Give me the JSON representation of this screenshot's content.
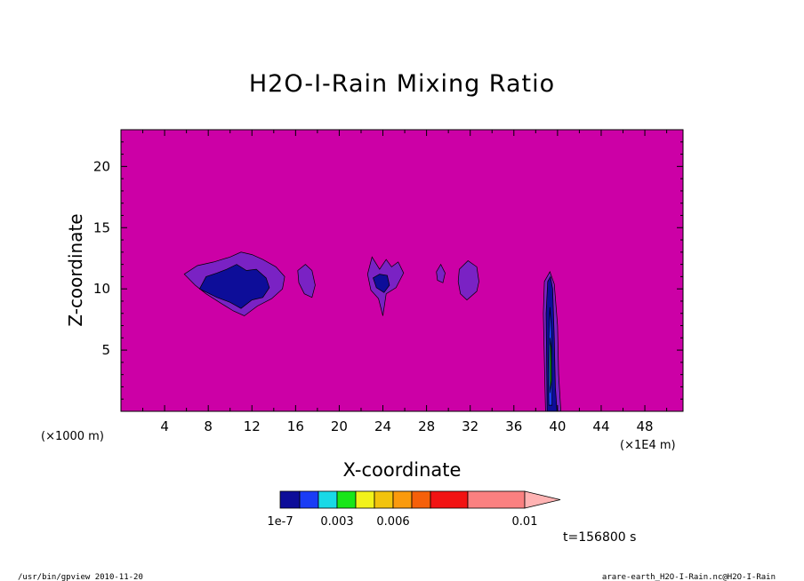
{
  "chart_data": {
    "type": "heatmap",
    "title": "H2O-I-Rain Mixing Ratio",
    "xlabel": "X-coordinate",
    "ylabel": "Z-coordinate",
    "x_unit_left": "(×1000 m)",
    "x_unit_right": "(×1E4 m)",
    "xlim": [
      0,
      51.5
    ],
    "ylim": [
      0,
      23
    ],
    "x_ticks": [
      4,
      8,
      12,
      16,
      20,
      24,
      28,
      32,
      36,
      40,
      44,
      48
    ],
    "y_ticks": [
      5,
      10,
      15,
      20
    ],
    "background_color": "#cc00a6",
    "colorbar": {
      "colors": [
        "#0d0d99",
        "#1a3cf5",
        "#19d9e6",
        "#19e619",
        "#f2f21a",
        "#f2c30d",
        "#fa9a0d",
        "#f5600a",
        "#f21313",
        "#fa8080",
        "#ffb3b3"
      ],
      "labels": [
        {
          "text": "1e-7",
          "at": 0
        },
        {
          "text": "0.003",
          "at": 3
        },
        {
          "text": "0.006",
          "at": 6
        },
        {
          "text": "0.01",
          "at": 10
        }
      ]
    },
    "regions": [
      {
        "level": "trace",
        "color": "#7a22c4",
        "outline": [
          [
            5.8,
            11.2
          ],
          [
            7,
            11.9
          ],
          [
            8.5,
            12.2
          ],
          [
            10,
            12.6
          ],
          [
            11,
            13
          ],
          [
            12,
            12.8
          ],
          [
            13,
            12.4
          ],
          [
            14.2,
            11.8
          ],
          [
            15,
            11
          ],
          [
            14.8,
            10
          ],
          [
            13.8,
            9.2
          ],
          [
            12.5,
            8.6
          ],
          [
            11.3,
            7.8
          ],
          [
            10.3,
            8.2
          ],
          [
            9.2,
            8.8
          ],
          [
            7.8,
            9.6
          ],
          [
            6.8,
            10.3
          ]
        ]
      },
      {
        "level": "1e-7",
        "color": "#0d0d99",
        "outline": [
          [
            7.2,
            10
          ],
          [
            7.8,
            11
          ],
          [
            8.8,
            11.3
          ],
          [
            9.7,
            11.6
          ],
          [
            10.6,
            12
          ],
          [
            11.5,
            11.5
          ],
          [
            12.4,
            11.6
          ],
          [
            13.3,
            10.9
          ],
          [
            13.6,
            10.1
          ],
          [
            13,
            9.3
          ],
          [
            12,
            9.1
          ],
          [
            11,
            8.4
          ],
          [
            10,
            8.9
          ],
          [
            8.8,
            9.3
          ]
        ]
      },
      {
        "level": "trace",
        "color": "#7a22c4",
        "outline": [
          [
            16.2,
            11.5
          ],
          [
            16.9,
            12
          ],
          [
            17.5,
            11.5
          ],
          [
            17.8,
            10.3
          ],
          [
            17.5,
            9.3
          ],
          [
            16.8,
            9.6
          ],
          [
            16.3,
            10.5
          ]
        ]
      },
      {
        "level": "trace",
        "color": "#7a22c4",
        "outline": [
          [
            22.6,
            11.2
          ],
          [
            23,
            12.6
          ],
          [
            23.7,
            11.6
          ],
          [
            24.3,
            12.4
          ],
          [
            24.8,
            11.8
          ],
          [
            25.4,
            12.2
          ],
          [
            25.9,
            11.3
          ],
          [
            25.2,
            10.1
          ],
          [
            24.3,
            9.6
          ],
          [
            24,
            7.8
          ],
          [
            23.6,
            9.2
          ],
          [
            22.9,
            9.9
          ]
        ]
      },
      {
        "level": "1e-7",
        "color": "#0d0d99",
        "outline": [
          [
            23.1,
            10.9
          ],
          [
            23.7,
            11.2
          ],
          [
            24.4,
            11.1
          ],
          [
            24.6,
            10.3
          ],
          [
            24.1,
            9.7
          ],
          [
            23.4,
            10.1
          ]
        ]
      },
      {
        "level": "trace",
        "color": "#7a22c4",
        "outline": [
          [
            28.9,
            11.4
          ],
          [
            29.3,
            12
          ],
          [
            29.7,
            11.3
          ],
          [
            29.5,
            10.5
          ],
          [
            29,
            10.7
          ]
        ]
      },
      {
        "level": "trace",
        "color": "#7a22c4",
        "outline": [
          [
            31,
            11.6
          ],
          [
            31.8,
            12.3
          ],
          [
            32.6,
            11.8
          ],
          [
            32.8,
            10.6
          ],
          [
            32.6,
            9.8
          ],
          [
            31.7,
            9.1
          ],
          [
            31.1,
            9.6
          ],
          [
            30.9,
            10.6
          ]
        ]
      },
      {
        "level": "trace",
        "color": "#7a22c4",
        "outline": [
          [
            38.9,
            0
          ],
          [
            38.8,
            4
          ],
          [
            38.7,
            8
          ],
          [
            38.8,
            10.6
          ],
          [
            39.3,
            11.4
          ],
          [
            39.7,
            10.4
          ],
          [
            40,
            7
          ],
          [
            40.1,
            3
          ],
          [
            40.3,
            0
          ]
        ]
      },
      {
        "level": "1e-7",
        "color": "#0d0d99",
        "outline": [
          [
            39.05,
            0
          ],
          [
            39,
            4
          ],
          [
            38.95,
            8
          ],
          [
            39.1,
            10.6
          ],
          [
            39.35,
            11
          ],
          [
            39.55,
            10
          ],
          [
            39.7,
            6
          ],
          [
            39.8,
            2
          ],
          [
            39.95,
            0
          ]
        ]
      },
      {
        "level": "0.001",
        "color": "#1a3cf5",
        "outline": [
          [
            39.2,
            0.5
          ],
          [
            39.15,
            3
          ],
          [
            39.2,
            6
          ],
          [
            39.3,
            8.5
          ],
          [
            39.45,
            6.5
          ],
          [
            39.5,
            3.5
          ],
          [
            39.5,
            0.5
          ]
        ]
      },
      {
        "level": "0.003",
        "color": "#19e619",
        "outline": [
          [
            39.3,
            1.5
          ],
          [
            39.28,
            4
          ],
          [
            39.32,
            6
          ],
          [
            39.4,
            5.2
          ],
          [
            39.42,
            2.5
          ]
        ]
      }
    ],
    "time_label": "t=156800 s"
  },
  "footer": {
    "left": "/usr/bin/gpview  2010-11-20",
    "right": "arare-earth_H2O-I-Rain.nc@H2O-I-Rain"
  }
}
